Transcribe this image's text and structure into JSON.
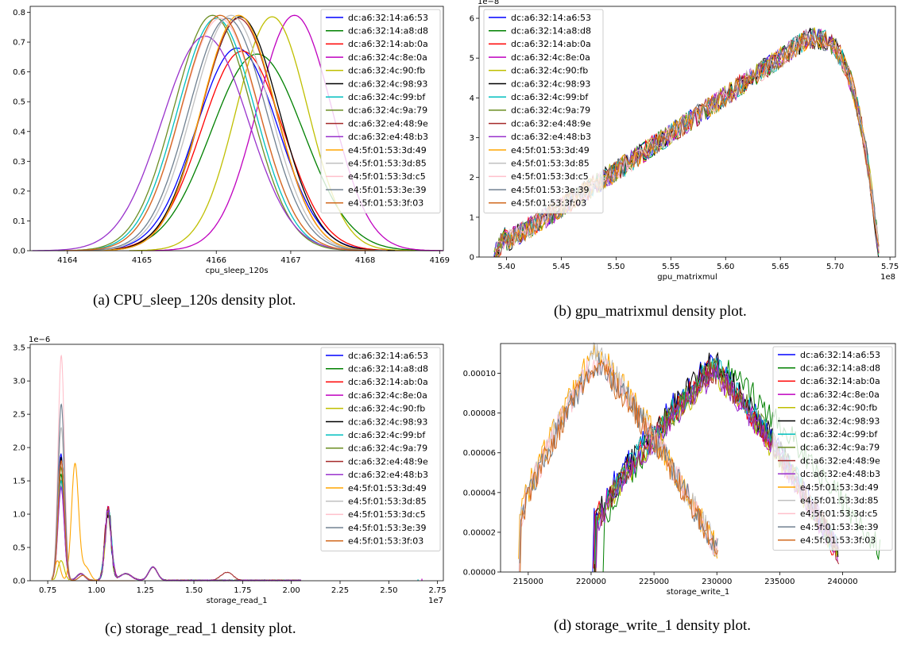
{
  "legend_labels": [
    "dc:a6:32:14:a6:53",
    "dc:a6:32:14:a8:d8",
    "dc:a6:32:14:ab:0a",
    "dc:a6:32:4c:8e:0a",
    "dc:a6:32:4c:90:fb",
    "dc:a6:32:4c:98:93",
    "dc:a6:32:4c:99:bf",
    "dc:a6:32:4c:9a:79",
    "dc:a6:32:e4:48:9e",
    "dc:a6:32:e4:48:b3",
    "e4:5f:01:53:3d:49",
    "e4:5f:01:53:3d:85",
    "e4:5f:01:53:3d:c5",
    "e4:5f:01:53:3e:39",
    "e4:5f:01:53:3f:03"
  ],
  "series_colors": [
    "#0000ff",
    "#008000",
    "#ff0000",
    "#bf00bf",
    "#bfbf00",
    "#000000",
    "#00bfbf",
    "#6b8e23",
    "#a52a2a",
    "#9932cc",
    "#ffa500",
    "#c0c0c0",
    "#ffc0cb",
    "#708090",
    "#d2691e"
  ],
  "captions": {
    "a": "(a) CPU_sleep_120s density plot.",
    "b": "(b) gpu_matrixmul density plot.",
    "c": "(c) storage_read_1 density plot.",
    "d": "(d) storage_write_1 density plot."
  },
  "chart_data": [
    {
      "id": "a",
      "type": "line",
      "xlabel": "cpu_sleep_120s",
      "ylabel": "",
      "exponent": "",
      "xlim": [
        4163.5,
        4169.05
      ],
      "ylim": [
        0,
        0.82
      ],
      "xticks": [
        4164,
        4165,
        4166,
        4167,
        4168,
        4169
      ],
      "yticks": [
        0,
        0.1,
        0.2,
        0.3,
        0.4,
        0.5,
        0.6,
        0.7,
        0.8
      ],
      "ytick_labels": [
        "0.0",
        "0.1",
        "0.2",
        "0.3",
        "0.4",
        "0.5",
        "0.6",
        "0.7",
        "0.8"
      ],
      "legend": "top-right",
      "series_gauss": [
        {
          "mu": 4166.28,
          "sigma": 0.55,
          "peak": 0.68
        },
        {
          "mu": 4166.55,
          "sigma": 0.62,
          "peak": 0.66
        },
        {
          "mu": 4166.35,
          "sigma": 0.55,
          "peak": 0.67
        },
        {
          "mu": 4167.05,
          "sigma": 0.5,
          "peak": 0.79
        },
        {
          "mu": 4166.75,
          "sigma": 0.48,
          "peak": 0.785
        },
        {
          "mu": 4166.32,
          "sigma": 0.52,
          "peak": 0.785
        },
        {
          "mu": 4166.0,
          "sigma": 0.52,
          "peak": 0.78
        },
        {
          "mu": 4165.95,
          "sigma": 0.52,
          "peak": 0.79
        },
        {
          "mu": 4166.3,
          "sigma": 0.5,
          "peak": 0.78
        },
        {
          "mu": 4165.85,
          "sigma": 0.58,
          "peak": 0.72
        },
        {
          "mu": 4166.3,
          "sigma": 0.5,
          "peak": 0.79
        },
        {
          "mu": 4166.2,
          "sigma": 0.52,
          "peak": 0.79
        },
        {
          "mu": 4166.05,
          "sigma": 0.52,
          "peak": 0.78
        },
        {
          "mu": 4166.15,
          "sigma": 0.52,
          "peak": 0.78
        },
        {
          "mu": 4166.05,
          "sigma": 0.52,
          "peak": 0.79
        }
      ]
    },
    {
      "id": "b",
      "type": "line",
      "xlabel": "gpu_matrixmul",
      "ylabel": "",
      "exponent": "1e−8",
      "x_exponent": "1e8",
      "xlim": [
        5.375,
        5.755
      ],
      "ylim": [
        0,
        6.3
      ],
      "xticks": [
        5.4,
        5.45,
        5.5,
        5.55,
        5.6,
        5.65,
        5.7,
        5.75
      ],
      "xtick_labels": [
        "5.40",
        "5.45",
        "5.50",
        "5.55",
        "5.60",
        "5.65",
        "5.70",
        "5.75"
      ],
      "yticks": [
        0,
        1,
        2,
        3,
        4,
        5,
        6
      ],
      "ytick_labels": [
        "0",
        "1",
        "2",
        "3",
        "4",
        "5",
        "6"
      ],
      "legend": "top-left",
      "series_shape": {
        "start": 5.39,
        "rise_end": 5.4,
        "base": 0.4,
        "peak_x": 5.675,
        "peak": 5.5,
        "end": 5.74
      }
    },
    {
      "id": "c",
      "type": "line",
      "xlabel": "storage_read_1",
      "ylabel": "",
      "exponent": "1e−6",
      "x_exponent": "1e7",
      "xlim": [
        0.66,
        2.78
      ],
      "ylim": [
        0,
        3.55
      ],
      "xticks": [
        0.75,
        1.0,
        1.25,
        1.5,
        1.75,
        2.0,
        2.25,
        2.5,
        2.75
      ],
      "xtick_labels": [
        "0.75",
        "1.00",
        "1.25",
        "1.50",
        "1.75",
        "2.00",
        "2.25",
        "2.50",
        "2.75"
      ],
      "yticks": [
        0,
        0.5,
        1.0,
        1.5,
        2.0,
        2.5,
        3.0,
        3.5
      ],
      "ytick_labels": [
        "0.0",
        "0.5",
        "1.0",
        "1.5",
        "2.0",
        "2.5",
        "3.0",
        "3.5"
      ],
      "legend": "top-right",
      "peaks": {
        "main_x": 0.82,
        "second_x": 1.06,
        "third_x": 1.29,
        "main_heights": [
          1.9,
          1.6,
          1.5,
          1.4,
          0.3,
          1.85,
          1.5,
          1.7,
          1.8,
          1.4,
          0.3,
          2.3,
          3.38,
          2.65,
          1.8
        ],
        "second_height": 1.12,
        "third_height": 0.2,
        "orange_peak_x": 0.89,
        "orange_peak": 1.75
      }
    },
    {
      "id": "d",
      "type": "line",
      "xlabel": "storage_write_1",
      "ylabel": "",
      "exponent": "",
      "xlim": [
        212800,
        244200
      ],
      "ylim": [
        0,
        0.000115
      ],
      "xticks": [
        215000,
        220000,
        225000,
        230000,
        235000,
        240000
      ],
      "xtick_labels": [
        "215000",
        "220000",
        "225000",
        "230000",
        "235000",
        "240000"
      ],
      "yticks": [
        0,
        2e-05,
        4e-05,
        6e-05,
        8e-05,
        0.0001
      ],
      "ytick_labels": [
        "0.00000",
        "0.00002",
        "0.00004",
        "0.00006",
        "0.00008",
        "0.00010"
      ],
      "legend": "top-right",
      "groups": {
        "late_start": 220000,
        "late_peak_x": 229500,
        "late_peak": 0.000103,
        "late_end": 239500,
        "early_start": 213800,
        "early_peak_x": 220000,
        "early_peak": 0.000108,
        "early_end": 229800
      }
    }
  ]
}
